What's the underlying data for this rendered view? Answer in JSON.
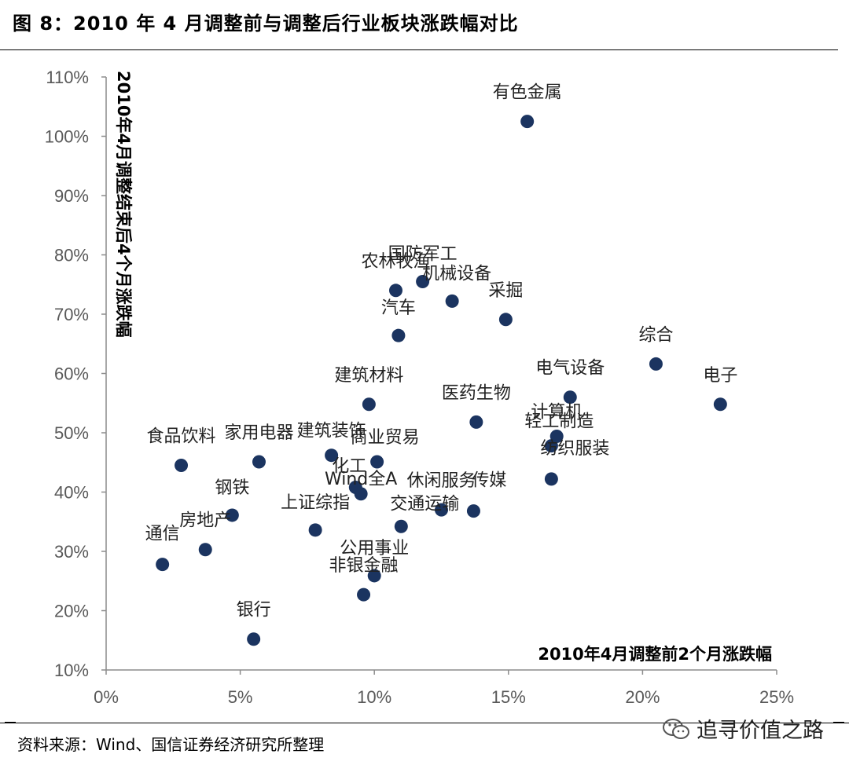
{
  "header": {
    "title": "图 8：2010 年 4 月调整前与调整后行业板块涨跌幅对比"
  },
  "footer": {
    "source": "资料来源：Wind、国信证券经济研究所整理",
    "watermark": "追寻价值之路"
  },
  "colors": {
    "point": "#1b3460",
    "axis": "#8c8c8c",
    "tick": "#595959"
  },
  "chart_data": {
    "type": "scatter",
    "xlabel": "2010年4月调整前2个月涨跌幅",
    "ylabel": "2010年4月调整结束后4个月涨跌幅",
    "xlim": [
      0,
      0.25
    ],
    "ylim": [
      0.1,
      1.1
    ],
    "xticks": [
      "0%",
      "5%",
      "10%",
      "15%",
      "20%",
      "25%"
    ],
    "yticks": [
      "10%",
      "20%",
      "30%",
      "40%",
      "50%",
      "60%",
      "70%",
      "80%",
      "90%",
      "100%",
      "110%"
    ],
    "grid": false,
    "legend": "none",
    "points": [
      {
        "label": "有色金属",
        "x": 0.157,
        "y": 1.025
      },
      {
        "label": "国防军工",
        "x": 0.118,
        "y": 0.755
      },
      {
        "label": "农林牧渔",
        "x": 0.108,
        "y": 0.74
      },
      {
        "label": "机械设备",
        "x": 0.129,
        "y": 0.722
      },
      {
        "label": "采掘",
        "x": 0.149,
        "y": 0.691
      },
      {
        "label": "汽车",
        "x": 0.109,
        "y": 0.664
      },
      {
        "label": "综合",
        "x": 0.205,
        "y": 0.616
      },
      {
        "label": "电子",
        "x": 0.229,
        "y": 0.548
      },
      {
        "label": "电气设备",
        "x": 0.173,
        "y": 0.56
      },
      {
        "label": "计算机",
        "x": 0.168,
        "y": 0.494
      },
      {
        "label": "轻工制造",
        "x": 0.166,
        "y": 0.478
      },
      {
        "label": "建筑材料",
        "x": 0.098,
        "y": 0.548
      },
      {
        "label": "医药生物",
        "x": 0.138,
        "y": 0.518
      },
      {
        "label": "食品饮料",
        "x": 0.028,
        "y": 0.445
      },
      {
        "label": "家用电器",
        "x": 0.057,
        "y": 0.451
      },
      {
        "label": "建筑装饰",
        "x": 0.084,
        "y": 0.462
      },
      {
        "label": "商业贸易",
        "x": 0.101,
        "y": 0.451
      },
      {
        "label": "化工",
        "x": 0.093,
        "y": 0.408
      },
      {
        "label": "Wind全A",
        "x": 0.095,
        "y": 0.397
      },
      {
        "label": "纺织服装",
        "x": 0.166,
        "y": 0.422
      },
      {
        "label": "休闲服务",
        "x": 0.125,
        "y": 0.37
      },
      {
        "label": "传媒",
        "x": 0.137,
        "y": 0.368
      },
      {
        "label": "钢铁",
        "x": 0.047,
        "y": 0.361
      },
      {
        "label": "上证综指",
        "x": 0.078,
        "y": 0.336
      },
      {
        "label": "交通运输",
        "x": 0.11,
        "y": 0.342
      },
      {
        "label": "房地产",
        "x": 0.037,
        "y": 0.303
      },
      {
        "label": "通信",
        "x": 0.021,
        "y": 0.278
      },
      {
        "label": "公用事业",
        "x": 0.1,
        "y": 0.259
      },
      {
        "label": "非银金融",
        "x": 0.096,
        "y": 0.227
      },
      {
        "label": "银行",
        "x": 0.055,
        "y": 0.152
      }
    ]
  }
}
